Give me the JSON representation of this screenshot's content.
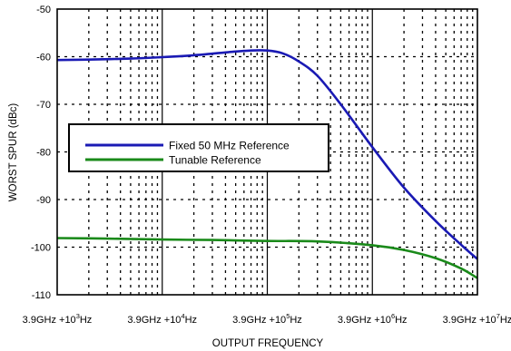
{
  "chart_data": {
    "type": "line",
    "title": "",
    "xlabel": "OUTPUT FREQUENCY",
    "ylabel": "WORST SPUR (dBc)",
    "x_scale": "log",
    "x_unit": "Hz offset from 3.9GHz",
    "xlim": [
      1000,
      10000000
    ],
    "ylim": [
      -110,
      -50
    ],
    "grid": true,
    "legend_position": "upper-left",
    "y_ticks": [
      {
        "value": -50,
        "label": "-50"
      },
      {
        "value": -60,
        "label": "-60"
      },
      {
        "value": -70,
        "label": "-70"
      },
      {
        "value": -80,
        "label": "-80"
      },
      {
        "value": -90,
        "label": "-90"
      },
      {
        "value": -100,
        "label": "-100"
      },
      {
        "value": -110,
        "label": "-110"
      }
    ],
    "x_ticks": [
      {
        "value": 1000,
        "prefix": "3.9GHz +10",
        "exp": "3",
        "suffix": "Hz"
      },
      {
        "value": 10000,
        "prefix": "3.9GHz +10",
        "exp": "4",
        "suffix": "Hz"
      },
      {
        "value": 100000,
        "prefix": "3.9GHz +10",
        "exp": "5",
        "suffix": "Hz"
      },
      {
        "value": 1000000,
        "prefix": "3.9GHz +10",
        "exp": "6",
        "suffix": "Hz"
      },
      {
        "value": 10000000,
        "prefix": "3.9GHz +10",
        "exp": "7",
        "suffix": "Hz"
      }
    ],
    "series": [
      {
        "name": "Fixed 50 MHz Reference",
        "color": "#1a1ab4",
        "x": [
          1000,
          2000,
          5000,
          10000,
          20000,
          40000,
          70000,
          100000,
          140000,
          200000,
          300000,
          500000,
          1000000,
          2000000,
          4000000,
          7000000,
          10000000
        ],
        "y": [
          -60.7,
          -60.6,
          -60.4,
          -60.1,
          -59.7,
          -59.1,
          -58.7,
          -58.7,
          -59.3,
          -61.0,
          -64.0,
          -70.0,
          -79.0,
          -87.5,
          -94.5,
          -99.5,
          -102.5
        ]
      },
      {
        "name": "Tunable Reference",
        "color": "#1a8a1a",
        "x": [
          1000,
          3000,
          10000,
          30000,
          100000,
          300000,
          1000000,
          2000000,
          4000000,
          7000000,
          10000000
        ],
        "y": [
          -98.1,
          -98.2,
          -98.4,
          -98.5,
          -98.7,
          -98.8,
          -99.6,
          -100.6,
          -102.3,
          -104.5,
          -106.5
        ]
      }
    ]
  }
}
